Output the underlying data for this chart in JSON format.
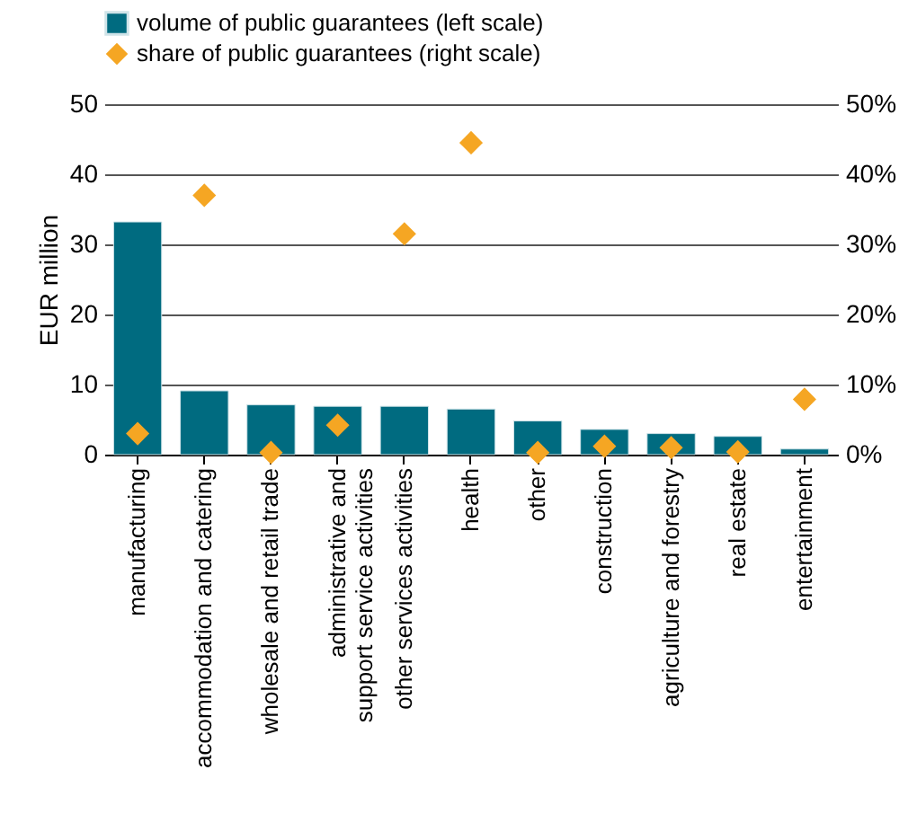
{
  "chart_data": {
    "type": "bar",
    "categories": [
      "manufacturing",
      "accommodation and catering",
      "wholesale and retail trade",
      "administrative and\nsupport service activities",
      "other services activities",
      "health",
      "other",
      "construction",
      "agriculture and forestry",
      "real estate",
      "entertainment"
    ],
    "series": [
      {
        "name": "volume of public guarantees (left scale)",
        "type": "bar",
        "color": "#006b80",
        "values": [
          33.2,
          9.1,
          7.1,
          6.9,
          6.9,
          6.5,
          4.8,
          3.6,
          3.0,
          2.6,
          0.8
        ]
      },
      {
        "name": "share of public guarantees (right scale)",
        "type": "scatter",
        "axis": "y2",
        "color": "#f5a623",
        "values": [
          3.0,
          37.0,
          0.3,
          4.2,
          31.5,
          44.5,
          0.3,
          1.2,
          1.0,
          0.4,
          7.9
        ]
      }
    ],
    "ylabel": "EUR million",
    "ylim": [
      0,
      50
    ],
    "yticks": [
      0,
      10,
      20,
      30,
      40,
      50
    ],
    "y2lim": [
      0,
      50
    ],
    "y2ticks": [
      {
        "value": 0,
        "label": "0%"
      },
      {
        "value": 10,
        "label": "10%"
      },
      {
        "value": 20,
        "label": "20%"
      },
      {
        "value": 30,
        "label": "30%"
      },
      {
        "value": 40,
        "label": "40%"
      },
      {
        "value": 50,
        "label": "50%"
      }
    ],
    "grid": "y",
    "legend": "top left",
    "marker": "diamond"
  }
}
